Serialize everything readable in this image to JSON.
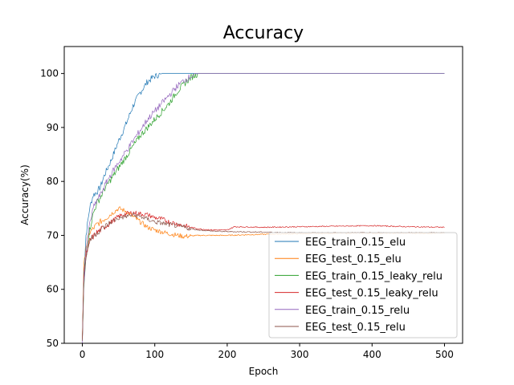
{
  "chart_data": {
    "type": "line",
    "title": "Accuracy",
    "xlabel": "Epoch",
    "ylabel": "Accuracy(%)",
    "xlim": [
      -25,
      525
    ],
    "ylim": [
      50,
      105
    ],
    "xticks": [
      0,
      100,
      200,
      300,
      400,
      500
    ],
    "yticks": [
      50,
      60,
      70,
      80,
      90,
      100
    ],
    "grid": false,
    "legend_position": "lower-right",
    "series": [
      {
        "name": "EEG_train_0.15_elu",
        "color": "#1f77b4",
        "x": [
          0,
          2,
          5,
          10,
          15,
          20,
          25,
          30,
          40,
          50,
          60,
          70,
          80,
          90,
          100,
          110,
          120,
          200,
          300,
          400,
          500
        ],
        "y": [
          50.5,
          62,
          70,
          75,
          77.5,
          78,
          79,
          81,
          84,
          87.5,
          90.5,
          94,
          96.5,
          98.5,
          99.5,
          100,
          100,
          100,
          100,
          100,
          100
        ]
      },
      {
        "name": "EEG_test_0.15_elu",
        "color": "#ff7f0e",
        "x": [
          0,
          2,
          5,
          10,
          20,
          30,
          40,
          50,
          60,
          70,
          80,
          90,
          100,
          120,
          140,
          160,
          200,
          250,
          300,
          350,
          400,
          450,
          500
        ],
        "y": [
          51,
          64,
          68,
          70.5,
          72,
          73,
          74,
          75,
          74.5,
          73.5,
          72.5,
          71.5,
          71,
          70.3,
          69.8,
          70,
          70,
          70.2,
          70.3,
          70.4,
          70.4,
          70.4,
          70.4
        ]
      },
      {
        "name": "EEG_train_0.15_leaky_relu",
        "color": "#2ca02c",
        "x": [
          0,
          2,
          5,
          10,
          15,
          20,
          25,
          30,
          40,
          50,
          60,
          70,
          80,
          90,
          100,
          110,
          120,
          130,
          140,
          150,
          160,
          170,
          200,
          300,
          400,
          500
        ],
        "y": [
          50.5,
          60,
          66,
          71,
          74,
          76,
          77,
          78.5,
          80.5,
          82.5,
          84.5,
          86.5,
          88.5,
          90,
          91.5,
          93,
          94.5,
          96.5,
          98,
          99.3,
          100,
          100,
          100,
          100,
          100,
          100
        ]
      },
      {
        "name": "EEG_test_0.15_leaky_relu",
        "color": "#d62728",
        "x": [
          0,
          2,
          5,
          10,
          20,
          30,
          40,
          50,
          60,
          70,
          80,
          90,
          100,
          110,
          120,
          140,
          160,
          180,
          200,
          210,
          250,
          300,
          350,
          400,
          450,
          500
        ],
        "y": [
          51,
          62,
          66,
          69,
          70.5,
          71.5,
          72.5,
          73.5,
          74,
          74.2,
          74,
          73.8,
          73.3,
          73,
          72.5,
          71.8,
          71.2,
          71,
          71,
          71.6,
          71.5,
          71.6,
          71.7,
          71.8,
          71.6,
          71.5
        ]
      },
      {
        "name": "EEG_train_0.15_relu",
        "color": "#9467bd",
        "x": [
          0,
          2,
          5,
          10,
          15,
          20,
          25,
          30,
          40,
          50,
          60,
          70,
          80,
          90,
          100,
          110,
          120,
          130,
          140,
          150,
          160,
          170,
          200,
          300,
          400,
          500
        ],
        "y": [
          50.5,
          61,
          67,
          72,
          75,
          76.5,
          77.5,
          79,
          81.5,
          83.5,
          85.5,
          87.5,
          89.5,
          91.5,
          93,
          94.5,
          96,
          97.5,
          98.7,
          99.5,
          100,
          100,
          100,
          100,
          100,
          100
        ]
      },
      {
        "name": "EEG_test_0.15_relu",
        "color": "#8c564b",
        "x": [
          0,
          2,
          5,
          10,
          20,
          30,
          40,
          50,
          60,
          70,
          80,
          90,
          100,
          120,
          140,
          160,
          180,
          200,
          250,
          300,
          350,
          400,
          450,
          500
        ],
        "y": [
          51,
          63,
          66,
          69,
          70.5,
          71.5,
          72.5,
          73.2,
          73.5,
          73.8,
          73.5,
          73,
          72.5,
          72,
          71.5,
          71,
          70.8,
          70.7,
          70.6,
          70.5,
          70.5,
          70.5,
          70.5,
          70.5
        ]
      }
    ]
  }
}
